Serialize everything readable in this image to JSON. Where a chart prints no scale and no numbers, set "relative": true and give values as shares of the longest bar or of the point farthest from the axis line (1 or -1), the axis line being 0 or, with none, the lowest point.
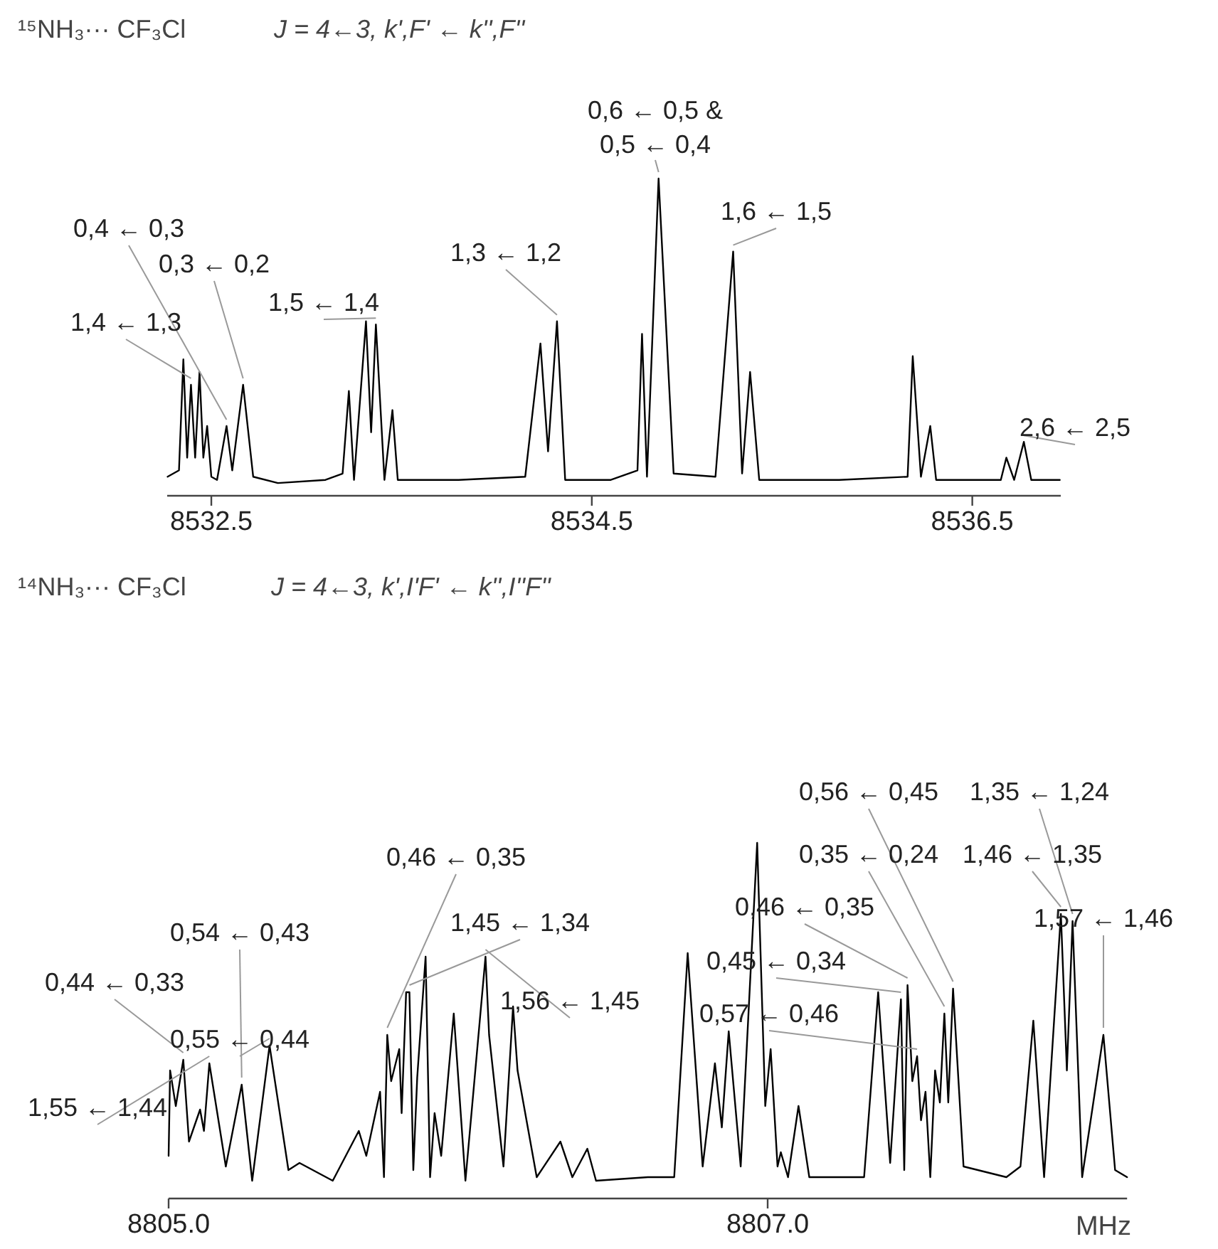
{
  "chart_data": [
    {
      "type": "line",
      "relative": true,
      "grid": false,
      "title": "¹⁵NH₃··· CF₃Cl",
      "subtitle": "J = 4←3, k',F' ← k'',F''",
      "xlim": [
        8532.268,
        8536.965
      ],
      "xticks": [
        8532.5,
        8534.5,
        8536.5
      ],
      "x": [
        8532.27,
        8532.33,
        8532.353,
        8532.373,
        8532.393,
        8532.415,
        8532.438,
        8532.458,
        8532.478,
        8532.5,
        8532.53,
        8532.58,
        8532.61,
        8532.667,
        8532.72,
        8532.85,
        8533.1,
        8533.19,
        8533.223,
        8533.25,
        8533.313,
        8533.34,
        8533.365,
        8533.41,
        8533.452,
        8533.48,
        8533.8,
        8534.15,
        8534.23,
        8534.27,
        8534.317,
        8534.36,
        8534.6,
        8534.74,
        8534.764,
        8534.79,
        8534.851,
        8534.93,
        8535.15,
        8535.243,
        8535.29,
        8535.332,
        8535.38,
        8535.8,
        8536.16,
        8536.187,
        8536.23,
        8536.279,
        8536.31,
        8536.65,
        8536.679,
        8536.72,
        8536.771,
        8536.81,
        8536.96
      ],
      "values": [
        0.06,
        0.08,
        0.43,
        0.12,
        0.35,
        0.12,
        0.39,
        0.12,
        0.22,
        0.06,
        0.05,
        0.22,
        0.08,
        0.35,
        0.06,
        0.04,
        0.05,
        0.07,
        0.33,
        0.05,
        0.55,
        0.2,
        0.54,
        0.05,
        0.27,
        0.05,
        0.05,
        0.06,
        0.48,
        0.14,
        0.55,
        0.05,
        0.05,
        0.08,
        0.51,
        0.06,
        1.0,
        0.07,
        0.06,
        0.77,
        0.07,
        0.39,
        0.05,
        0.05,
        0.06,
        0.44,
        0.06,
        0.22,
        0.05,
        0.05,
        0.12,
        0.05,
        0.17,
        0.05,
        0.05
      ],
      "annotations": [
        {
          "text": "1,4 ← 1,3",
          "x": 8532.393,
          "y": 0.35
        },
        {
          "text": "0,4 ← 0,3",
          "x": 8532.58,
          "y": 0.22
        },
        {
          "text": "0,3 ← 0,2",
          "x": 8532.667,
          "y": 0.35
        },
        {
          "text": "1,5 ← 1,4",
          "x": 8533.365,
          "y": 0.54
        },
        {
          "text": "1,3 ← 1,2",
          "x": 8534.317,
          "y": 0.55
        },
        {
          "text": "0,6 ← 0,5 &\n0,5 ← 0,4",
          "x": 8534.851,
          "y": 1.0
        },
        {
          "text": "1,6 ← 1,5",
          "x": 8535.243,
          "y": 0.77
        },
        {
          "text": "2,6 ← 2,5",
          "x": 8536.771,
          "y": 0.17
        }
      ]
    },
    {
      "type": "line",
      "relative": true,
      "grid": false,
      "title": "¹⁴NH₃··· CF₃Cl",
      "subtitle": "J = 4←3, k',I'F' ← k'',I''F''",
      "xlabel": "MHz",
      "xlim": [
        8805.0,
        8808.2
      ],
      "xticks": [
        {
          "value": 8805.0,
          "label": "8805.0"
        },
        {
          "value": 8807.0,
          "label": "8807.0"
        }
      ],
      "x": [
        8805.0,
        8805.005,
        8805.024,
        8805.049,
        8805.068,
        8805.105,
        8805.118,
        8805.136,
        8805.191,
        8805.244,
        8805.279,
        8805.337,
        8805.4,
        8805.437,
        8805.548,
        8805.635,
        8805.66,
        8805.706,
        8805.719,
        8805.73,
        8805.743,
        8805.77,
        8805.778,
        8805.793,
        8805.804,
        8805.817,
        8805.83,
        8805.858,
        8805.873,
        8805.888,
        8805.91,
        8805.952,
        8805.991,
        8806.058,
        8806.07,
        8806.118,
        8806.15,
        8806.165,
        8806.229,
        8806.308,
        8806.348,
        8806.398,
        8806.427,
        8806.6,
        8806.688,
        8806.733,
        8806.783,
        8806.824,
        8806.847,
        8806.87,
        8806.91,
        8806.965,
        8806.992,
        8807.01,
        8807.033,
        8807.044,
        8807.068,
        8807.103,
        8807.139,
        8807.322,
        8807.369,
        8807.409,
        8807.445,
        8807.456,
        8807.467,
        8807.483,
        8807.499,
        8807.512,
        8807.527,
        8807.543,
        8807.559,
        8807.575,
        8807.59,
        8807.603,
        8807.619,
        8807.654,
        8807.797,
        8807.844,
        8807.887,
        8807.923,
        8807.979,
        8807.999,
        8808.018,
        8808.05,
        8808.121,
        8808.16,
        8808.2
      ],
      "values": [
        0.12,
        0.36,
        0.26,
        0.39,
        0.16,
        0.25,
        0.19,
        0.38,
        0.09,
        0.32,
        0.05,
        0.43,
        0.08,
        0.1,
        0.05,
        0.19,
        0.12,
        0.3,
        0.06,
        0.46,
        0.33,
        0.42,
        0.24,
        0.58,
        0.58,
        0.08,
        0.34,
        0.68,
        0.06,
        0.24,
        0.12,
        0.52,
        0.05,
        0.68,
        0.46,
        0.09,
        0.54,
        0.36,
        0.06,
        0.16,
        0.06,
        0.14,
        0.05,
        0.06,
        0.06,
        0.69,
        0.09,
        0.38,
        0.2,
        0.47,
        0.09,
        1.0,
        0.26,
        0.42,
        0.09,
        0.13,
        0.06,
        0.26,
        0.06,
        0.06,
        0.58,
        0.1,
        0.56,
        0.08,
        0.6,
        0.33,
        0.4,
        0.22,
        0.3,
        0.06,
        0.36,
        0.27,
        0.52,
        0.27,
        0.59,
        0.09,
        0.06,
        0.09,
        0.5,
        0.06,
        0.8,
        0.36,
        0.78,
        0.06,
        0.46,
        0.08,
        0.06
      ],
      "annotations": [
        {
          "text": "1,55 ← 1,44",
          "x": 8805.136,
          "y": 0.38
        },
        {
          "text": "0,55 ← 0,44",
          "x": 8805.337,
          "y": 0.43
        },
        {
          "text": "0,44 ← 0,33",
          "x": 8805.049,
          "y": 0.39
        },
        {
          "text": "0,54 ← 0,43",
          "x": 8805.244,
          "y": 0.32
        },
        {
          "text": "0,46 ← 0,35",
          "x": 8805.73,
          "y": 0.46
        },
        {
          "text": "1,45 ← 1,34",
          "x": 8805.804,
          "y": 0.58
        },
        {
          "text": "1,56 ← 1,45",
          "x": 8806.058,
          "y": 0.68
        },
        {
          "text": "0,56 ← 0,45",
          "x": 8807.619,
          "y": 0.59
        },
        {
          "text": "0,35 ← 0,24",
          "x": 8807.59,
          "y": 0.52
        },
        {
          "text": "0,46 ← 0,35",
          "x": 8807.467,
          "y": 0.6
        },
        {
          "text": "0,45 ← 0,34",
          "x": 8807.445,
          "y": 0.56
        },
        {
          "text": "0,57 ← 0,46",
          "x": 8807.499,
          "y": 0.4
        },
        {
          "text": "1,35 ← 1,24",
          "x": 8808.018,
          "y": 0.78
        },
        {
          "text": "1,46 ← 1,35",
          "x": 8807.979,
          "y": 0.8
        },
        {
          "text": "1,57 ← 1,46",
          "x": 8808.121,
          "y": 0.46
        }
      ]
    }
  ]
}
